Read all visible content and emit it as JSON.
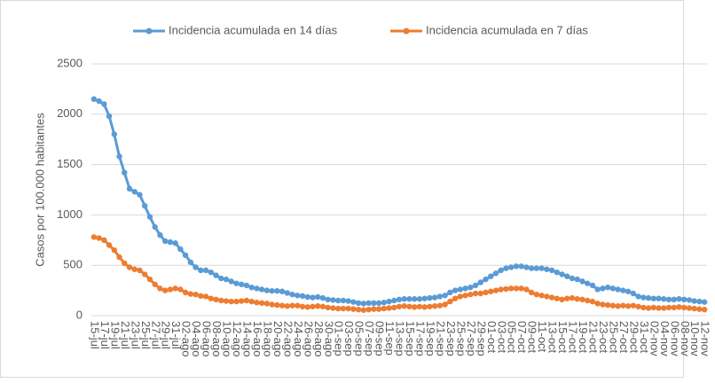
{
  "chart_data": {
    "type": "line",
    "y_label": "Casos por 100.000 habitantes",
    "categories": [
      "15-jul",
      null,
      "17-jul",
      null,
      "19-jul",
      null,
      "21-jul",
      null,
      "23-jul",
      null,
      "25-jul",
      null,
      "27-jul",
      null,
      "29-jul",
      null,
      "31-jul",
      null,
      "02-ago",
      null,
      "04-ago",
      null,
      "06-ago",
      null,
      "08-ago",
      null,
      "10-ago",
      null,
      "12-ago",
      null,
      "14-ago",
      null,
      "16-ago",
      null,
      "18-ago",
      null,
      "20-ago",
      null,
      "22-ago",
      null,
      "24-ago",
      null,
      "26-ago",
      null,
      "28-ago",
      null,
      "30-ago",
      null,
      "01-sep",
      null,
      "03-sep",
      null,
      "05-sep",
      null,
      "07-sep",
      null,
      "09-sep",
      null,
      "11-sep",
      null,
      "13-sep",
      null,
      "15-sep",
      null,
      "17-sep",
      null,
      "19-sep",
      null,
      "21-sep",
      null,
      "23-sep",
      null,
      "25-sep",
      null,
      "27-sep",
      null,
      "29-sep",
      null,
      "01-oct",
      null,
      "03-oct",
      null,
      "05-oct",
      null,
      "07-oct",
      null,
      "09-oct",
      null,
      "11-oct",
      null,
      "13-oct",
      null,
      "15-oct",
      null,
      "17-oct",
      null,
      "19-oct",
      null,
      "21-oct",
      null,
      "23-oct",
      null,
      "25-oct",
      null,
      "27-oct",
      null,
      "29-oct",
      null,
      "31-oct",
      null,
      "02-nov",
      null,
      "04-nov",
      null,
      "06-nov",
      null,
      "08-nov",
      null,
      "10-nov",
      null,
      "12-nov"
    ],
    "series": [
      {
        "name": "Incidencia acumulada en 14 días",
        "color": "#5b9bd5",
        "values": [
          2150,
          2130,
          2100,
          1980,
          1800,
          1580,
          1420,
          1260,
          1230,
          1200,
          1090,
          980,
          880,
          800,
          740,
          730,
          720,
          660,
          600,
          530,
          480,
          450,
          450,
          430,
          400,
          370,
          360,
          340,
          320,
          310,
          300,
          280,
          270,
          260,
          250,
          245,
          245,
          240,
          225,
          210,
          200,
          195,
          185,
          180,
          185,
          175,
          160,
          155,
          150,
          150,
          145,
          135,
          125,
          120,
          125,
          125,
          125,
          130,
          140,
          150,
          160,
          165,
          165,
          165,
          165,
          170,
          175,
          180,
          190,
          200,
          230,
          250,
          260,
          270,
          280,
          300,
          330,
          360,
          390,
          420,
          450,
          470,
          480,
          490,
          490,
          480,
          470,
          470,
          470,
          460,
          450,
          430,
          410,
          390,
          370,
          360,
          340,
          320,
          300,
          260,
          270,
          280,
          270,
          260,
          250,
          240,
          220,
          190,
          180,
          175,
          170,
          170,
          165,
          160,
          160,
          165,
          160,
          155,
          145,
          140,
          135
        ]
      },
      {
        "name": "Incidencia acumulada en 7 días",
        "color": "#ed7d31",
        "values": [
          780,
          770,
          750,
          700,
          650,
          580,
          520,
          480,
          460,
          450,
          410,
          360,
          310,
          270,
          250,
          260,
          270,
          260,
          230,
          215,
          210,
          195,
          190,
          170,
          160,
          150,
          145,
          140,
          140,
          145,
          150,
          140,
          130,
          125,
          120,
          110,
          105,
          100,
          95,
          100,
          100,
          90,
          85,
          90,
          95,
          90,
          80,
          75,
          70,
          70,
          70,
          65,
          60,
          55,
          60,
          65,
          65,
          70,
          75,
          80,
          90,
          95,
          90,
          85,
          90,
          85,
          90,
          95,
          100,
          110,
          140,
          170,
          190,
          200,
          210,
          220,
          220,
          230,
          240,
          250,
          260,
          265,
          270,
          270,
          270,
          260,
          230,
          210,
          200,
          190,
          180,
          170,
          160,
          170,
          175,
          165,
          160,
          150,
          140,
          120,
          110,
          105,
          100,
          95,
          100,
          95,
          100,
          90,
          80,
          75,
          80,
          75,
          75,
          80,
          80,
          85,
          80,
          75,
          70,
          65,
          60
        ]
      }
    ],
    "ylim": [
      0,
      2500
    ],
    "yticks": [
      0,
      500,
      1000,
      1500,
      2000,
      2500
    ],
    "grid": true,
    "legend": "top"
  }
}
